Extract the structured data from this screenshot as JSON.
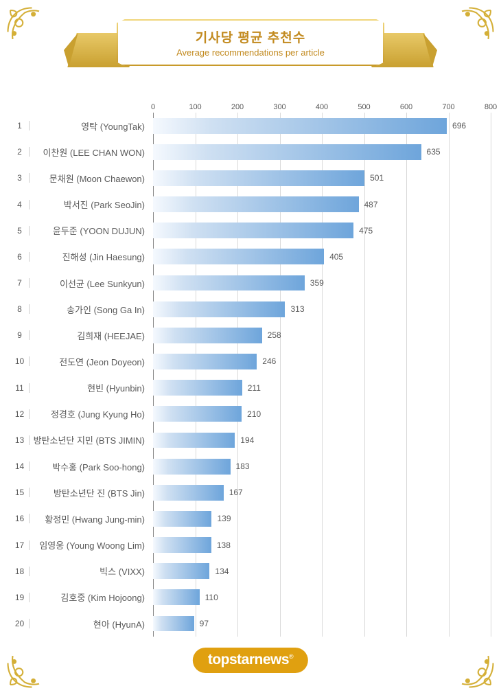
{
  "title": {
    "ko": "기사당 평균 추천수",
    "en": "Average recommendations per article"
  },
  "chart": {
    "type": "bar",
    "orientation": "horizontal",
    "xmin": 0,
    "xmax": 800,
    "xtick_step": 100,
    "ticks": [
      "0",
      "100",
      "200",
      "300",
      "400",
      "500",
      "600",
      "700",
      "800"
    ],
    "bar_gradient_start": "#f5f9fe",
    "bar_gradient_mid": "#cfe0f2",
    "bar_gradient_end": "#6ea5db",
    "grid_color": "#d9d9d9",
    "axis_color": "#888888",
    "text_color": "#595959",
    "background_color": "#ffffff",
    "label_fontsize": 13,
    "value_fontsize": 12,
    "tick_fontsize": 11,
    "items": [
      {
        "rank": "1",
        "name": "영탁 (YoungTak)",
        "value": 696
      },
      {
        "rank": "2",
        "name": "이찬원 (LEE CHAN WON)",
        "value": 635
      },
      {
        "rank": "3",
        "name": "문채원 (Moon Chaewon)",
        "value": 501
      },
      {
        "rank": "4",
        "name": "박서진 (Park SeoJin)",
        "value": 487
      },
      {
        "rank": "5",
        "name": "윤두준 (YOON DUJUN)",
        "value": 475
      },
      {
        "rank": "6",
        "name": "진해성 (Jin Haesung)",
        "value": 405
      },
      {
        "rank": "7",
        "name": "이선균 (Lee Sunkyun)",
        "value": 359
      },
      {
        "rank": "8",
        "name": "송가인 (Song Ga In)",
        "value": 313
      },
      {
        "rank": "9",
        "name": "김희재 (HEEJAE)",
        "value": 258
      },
      {
        "rank": "10",
        "name": "전도연 (Jeon Doyeon)",
        "value": 246
      },
      {
        "rank": "11",
        "name": "현빈 (Hyunbin)",
        "value": 211
      },
      {
        "rank": "12",
        "name": "정경호 (Jung Kyung Ho)",
        "value": 210
      },
      {
        "rank": "13",
        "name": "방탄소년단 지민 (BTS JIMIN)",
        "value": 194
      },
      {
        "rank": "14",
        "name": "박수홍 (Park Soo-hong)",
        "value": 183
      },
      {
        "rank": "15",
        "name": "방탄소년단 진 (BTS Jin)",
        "value": 167
      },
      {
        "rank": "16",
        "name": "황정민 (Hwang Jung-min)",
        "value": 139
      },
      {
        "rank": "17",
        "name": "임영웅 (Young Woong Lim)",
        "value": 138
      },
      {
        "rank": "18",
        "name": "빅스 (VIXX)",
        "value": 134
      },
      {
        "rank": "19",
        "name": "김호중 (Kim Hojoong)",
        "value": 110
      },
      {
        "rank": "20",
        "name": "현아 (HyunA)",
        "value": 97
      }
    ]
  },
  "logo": {
    "text": "topstarnews",
    "mark": "®"
  },
  "decor": {
    "ribbon_gold_light": "#f0d67b",
    "ribbon_gold_dark": "#c89a2a",
    "title_color": "#c28a1f",
    "logo_bg": "#e0a010",
    "logo_fg": "#ffffff"
  }
}
